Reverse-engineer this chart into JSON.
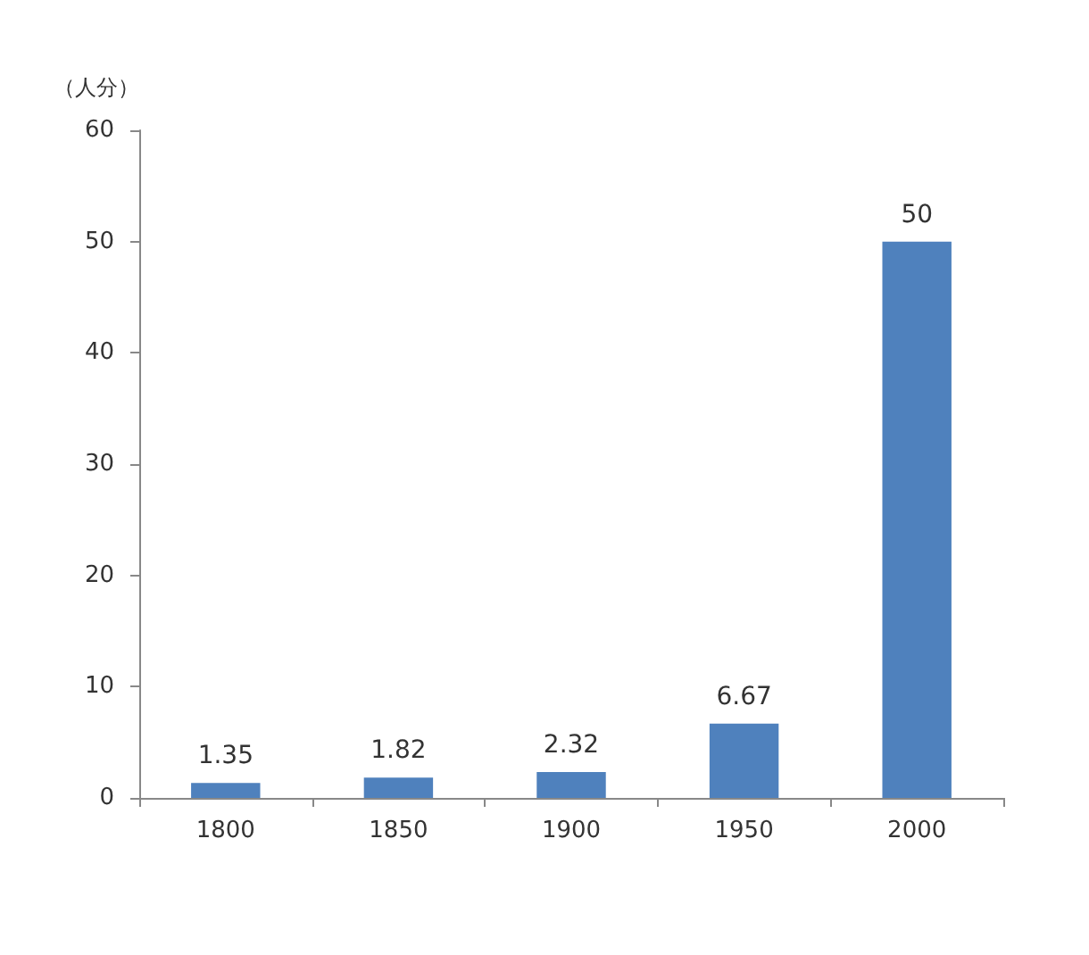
{
  "chart_data": {
    "type": "bar",
    "ylabel": "（人分）",
    "categories": [
      "1800",
      "1850",
      "1900",
      "1950",
      "2000"
    ],
    "values": [
      1.35,
      1.82,
      2.32,
      6.67,
      50
    ],
    "color": "#4f81bd",
    "ylim": [
      0,
      60
    ],
    "yticks": [
      0,
      10,
      20,
      30,
      40,
      50,
      60
    ],
    "data_labels": true,
    "grid": false
  }
}
